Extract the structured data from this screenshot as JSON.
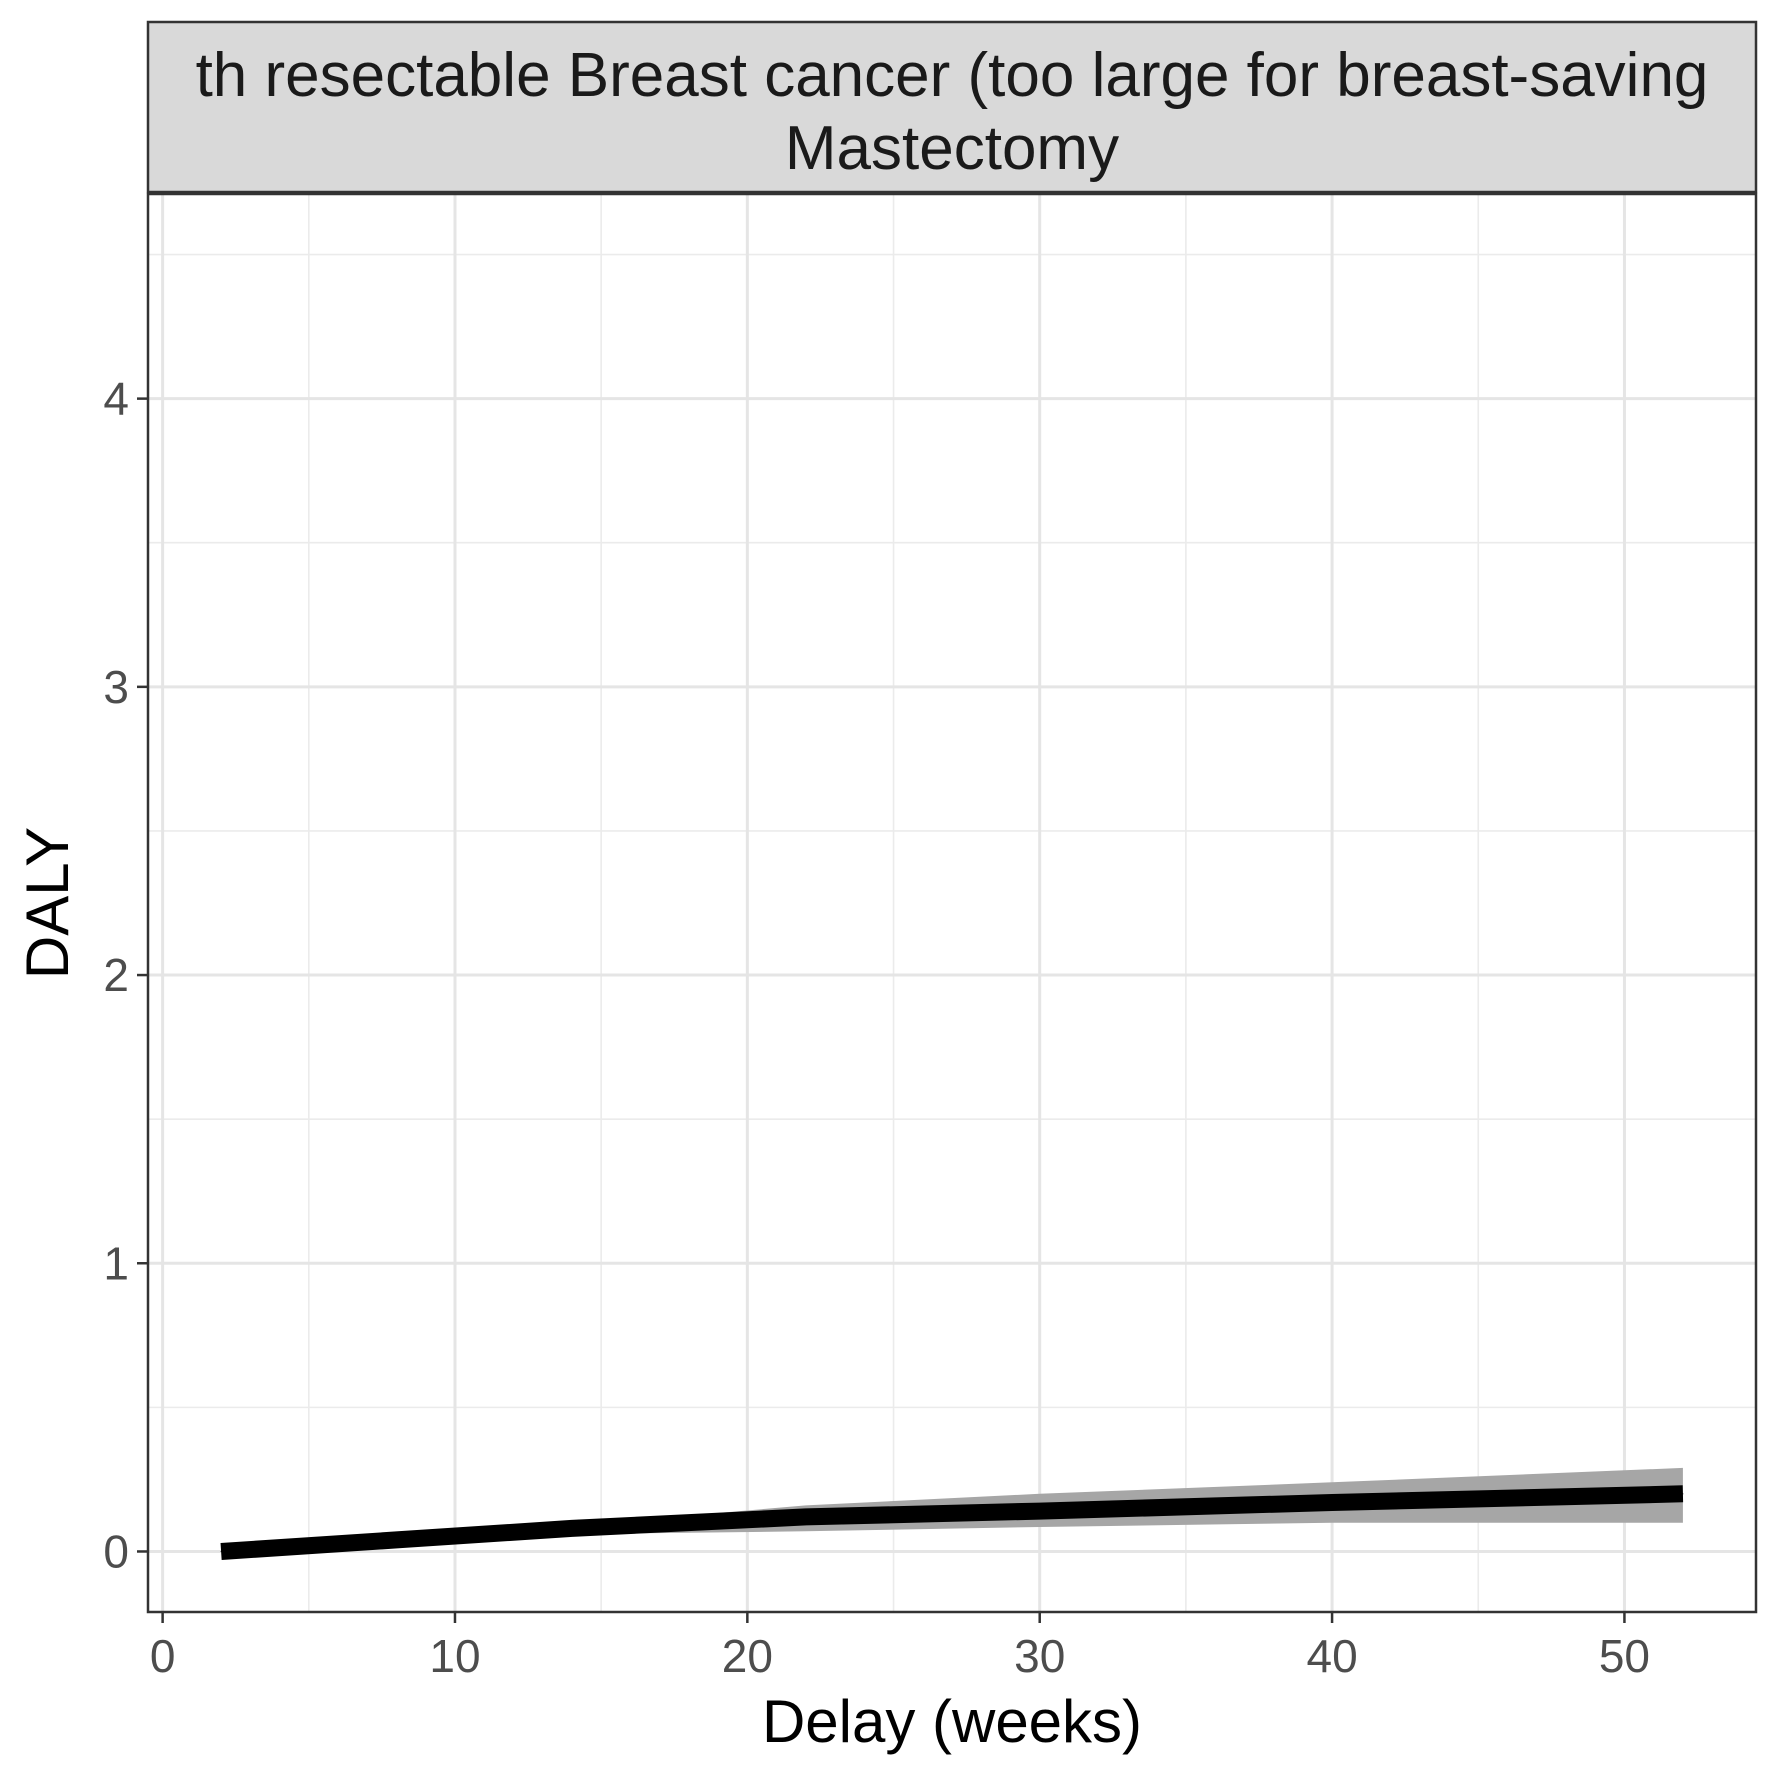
{
  "chart_data": {
    "type": "line",
    "facet_title_lines": [
      "th resectable Breast cancer (too large for breast-saving",
      "Mastectomy"
    ],
    "xlabel": "Delay (weeks)",
    "ylabel": "DALY",
    "xlim": [
      -0.5,
      54.5
    ],
    "ylim": [
      -0.21,
      4.71
    ],
    "x_ticks": [
      0,
      10,
      20,
      30,
      40,
      50
    ],
    "y_ticks": [
      0,
      1,
      2,
      3,
      4
    ],
    "grid": true,
    "legend": "none",
    "series": [
      {
        "x": [
          2,
          8,
          14,
          22,
          30,
          40,
          52
        ],
        "values": [
          0.0,
          0.04,
          0.08,
          0.12,
          0.14,
          0.17,
          0.2
        ],
        "lower": [
          0.0,
          0.035,
          0.06,
          0.07,
          0.085,
          0.1,
          0.1
        ],
        "upper": [
          0.0,
          0.045,
          0.09,
          0.16,
          0.2,
          0.24,
          0.29
        ],
        "color": "#000000",
        "ribbon_color": "#a6a6a6"
      }
    ]
  }
}
